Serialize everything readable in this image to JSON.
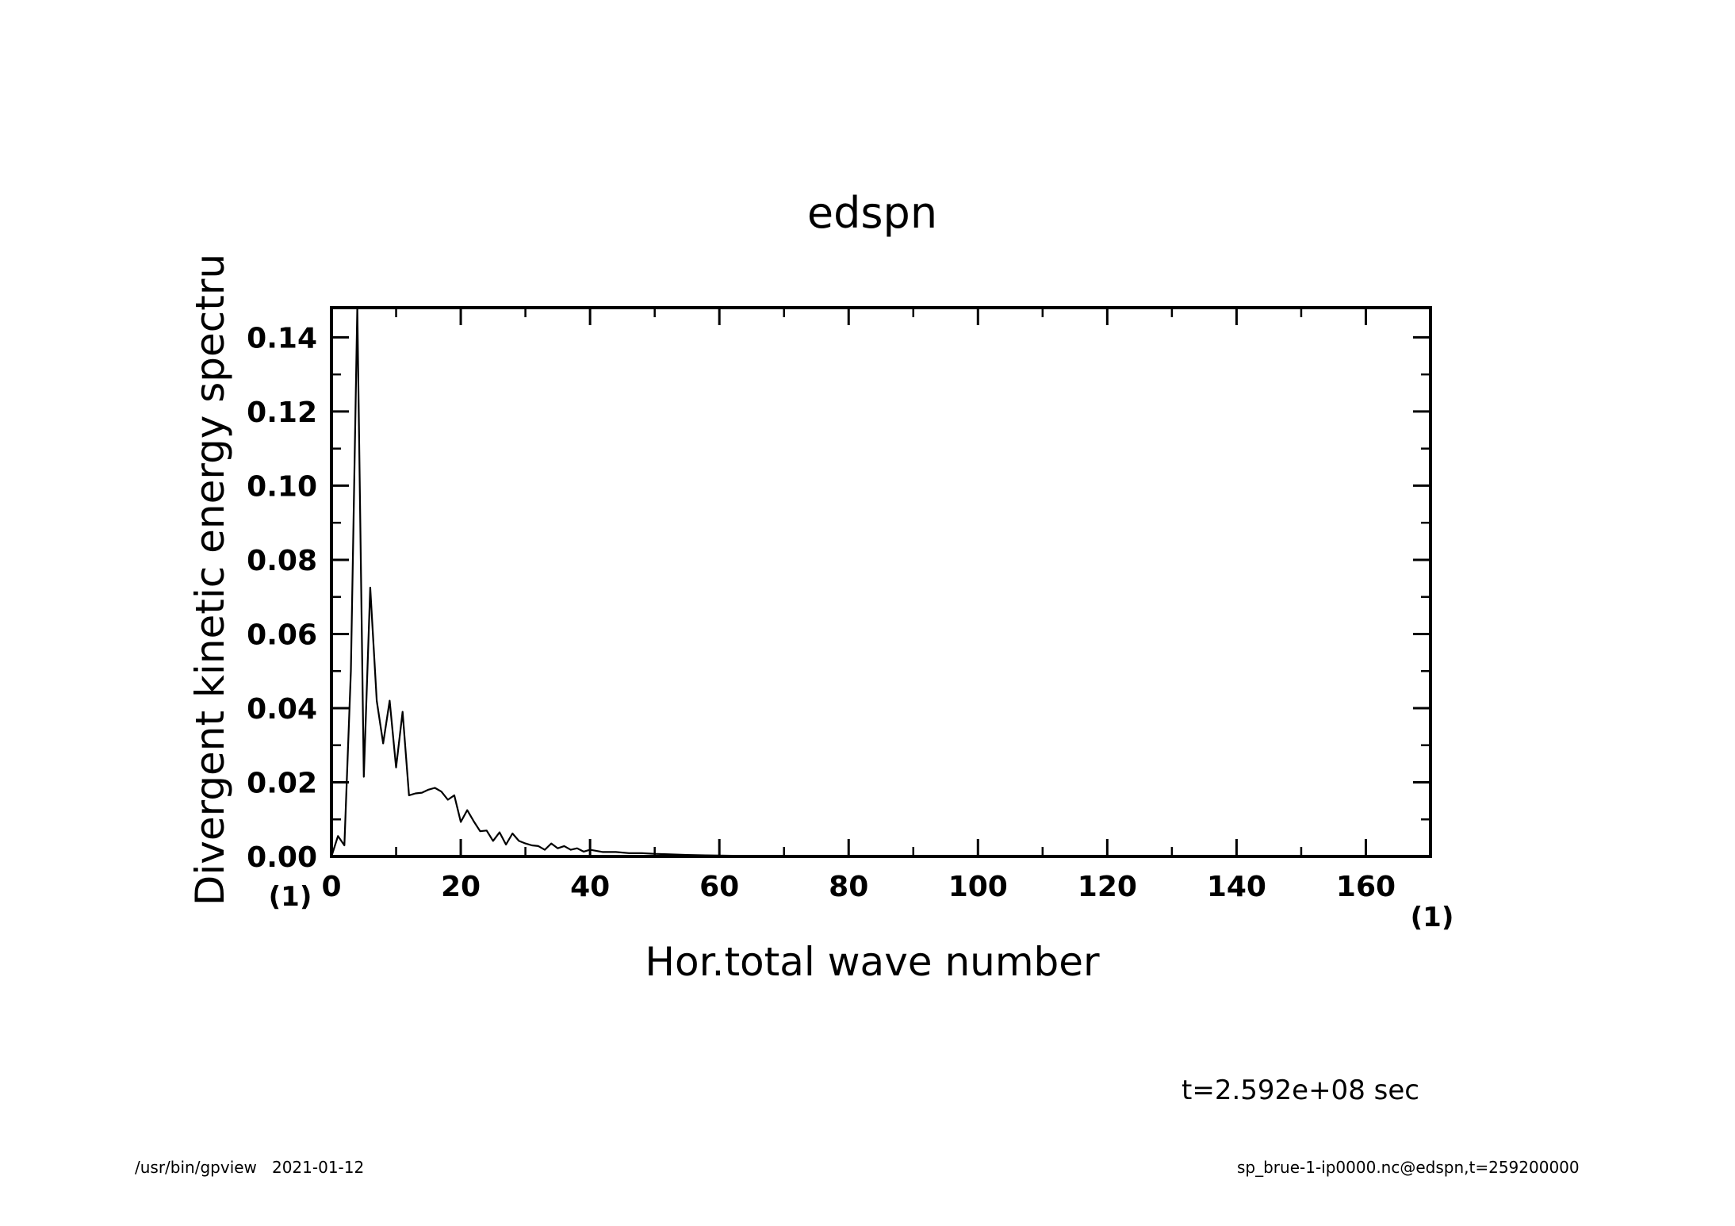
{
  "chart_data": {
    "type": "line",
    "title": "edspn",
    "xlabel": "Hor.total wave number",
    "ylabel": "Divergent kinetic energy spectru",
    "x_unit": "(1)",
    "y_unit": "(1)",
    "xlim": [
      0,
      170
    ],
    "ylim": [
      0,
      0.148
    ],
    "x_ticks": [
      0,
      20,
      40,
      60,
      80,
      100,
      120,
      140,
      160
    ],
    "x_tick_labels": [
      "0",
      "20",
      "40",
      "60",
      "80",
      "100",
      "120",
      "140",
      "160"
    ],
    "y_ticks": [
      0.0,
      0.02,
      0.04,
      0.06,
      0.08,
      0.1,
      0.12,
      0.14
    ],
    "y_tick_labels": [
      "0.00",
      "0.02",
      "0.04",
      "0.06",
      "0.08",
      "0.10",
      "0.12",
      "0.14"
    ],
    "grid": false,
    "series": [
      {
        "x": [
          0,
          1,
          2,
          3,
          4,
          5,
          6,
          7,
          8,
          9,
          10,
          11,
          12,
          13,
          14,
          15,
          16,
          17,
          18,
          19,
          20,
          21,
          22,
          23,
          24,
          25,
          26,
          27,
          28,
          29,
          30,
          31,
          32,
          33,
          34,
          35,
          36,
          37,
          38,
          39,
          40,
          42,
          44,
          46,
          48,
          50,
          52,
          55,
          58,
          62,
          66,
          70,
          80,
          100,
          120,
          140,
          160,
          170
        ],
        "y": [
          0.0,
          0.0055,
          0.003,
          0.05,
          0.148,
          0.0215,
          0.0725,
          0.042,
          0.0305,
          0.042,
          0.024,
          0.039,
          0.0165,
          0.017,
          0.0172,
          0.018,
          0.0185,
          0.0175,
          0.0153,
          0.0165,
          0.0093,
          0.0125,
          0.0095,
          0.0068,
          0.007,
          0.0042,
          0.0065,
          0.0032,
          0.0062,
          0.0042,
          0.0035,
          0.003,
          0.0028,
          0.0018,
          0.0035,
          0.0022,
          0.0028,
          0.0018,
          0.0022,
          0.0013,
          0.0018,
          0.0012,
          0.0012,
          0.0009,
          0.0009,
          0.0007,
          0.0006,
          0.0004,
          0.0003,
          0.0002,
          0.0001,
          5e-05,
          2e-05,
          1e-05,
          0.0,
          0.0,
          0.0,
          0.0
        ]
      }
    ]
  },
  "annotations": {
    "time": "t=2.592e+08 sec",
    "footer_left": "/usr/bin/gpview   2021-01-12",
    "footer_right": "sp_brue-1-ip0000.nc@edspn,t=259200000"
  },
  "colors": {
    "line": "#000000",
    "background": "#ffffff"
  }
}
